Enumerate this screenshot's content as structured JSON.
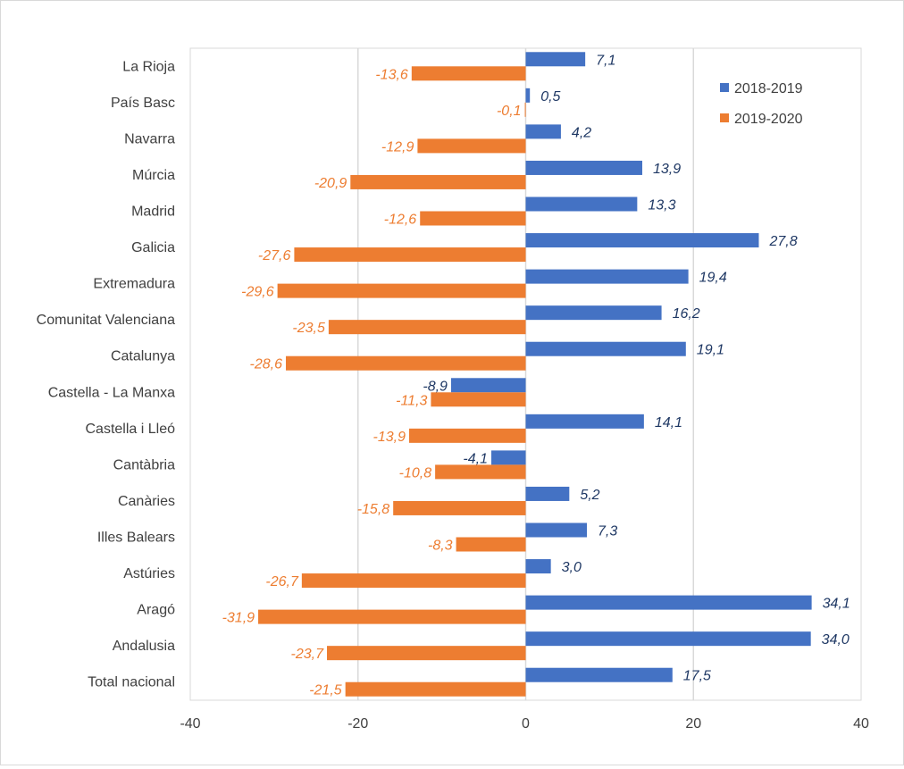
{
  "chart_data": {
    "type": "bar",
    "orientation": "horizontal",
    "title": "",
    "xlabel": "",
    "ylabel": "",
    "xlim": [
      -40,
      40
    ],
    "xticks": [
      -40,
      -20,
      0,
      20,
      40
    ],
    "grid": true,
    "legend_position": "top-right",
    "categories": [
      "La Rioja",
      "País Basc",
      "Navarra",
      "Múrcia",
      "Madrid",
      "Galicia",
      "Extremadura",
      "Comunitat Valenciana",
      "Catalunya",
      "Castella - La Manxa",
      "Castella i Lleó",
      "Cantàbria",
      "Canàries",
      "Illes Balears",
      "Astúries",
      "Aragó",
      "Andalusia",
      "Total nacional"
    ],
    "series": [
      {
        "name": "2018-2019",
        "color": "#4472c4",
        "values": [
          7.1,
          0.5,
          4.2,
          13.9,
          13.3,
          27.8,
          19.4,
          16.2,
          19.1,
          -8.9,
          14.1,
          -4.1,
          5.2,
          7.3,
          3.0,
          34.1,
          34.0,
          17.5
        ],
        "labels": [
          "7,1",
          "0,5",
          "4,2",
          "13,9",
          "13,3",
          "27,8",
          "19,4",
          "16,2",
          "19,1",
          "-8,9",
          "14,1",
          "-4,1",
          "5,2",
          "7,3",
          "3,0",
          "34,1",
          "34,0",
          "17,5"
        ]
      },
      {
        "name": "2019-2020",
        "color": "#ed7d31",
        "values": [
          -13.6,
          -0.1,
          -12.9,
          -20.9,
          -12.6,
          -27.6,
          -29.6,
          -23.5,
          -28.6,
          -11.3,
          -13.9,
          -10.8,
          -15.8,
          -8.3,
          -26.7,
          -31.9,
          -23.7,
          -21.5
        ],
        "labels": [
          "-13,6",
          "-0,1",
          "-12,9",
          "-20,9",
          "-12,6",
          "-27,6",
          "-29,6",
          "-23,5",
          "-28,6",
          "-11,3",
          "-13,9",
          "-10,8",
          "-15,8",
          "-8,3",
          "-26,7",
          "-31,9",
          "-23,7",
          "-21,5"
        ]
      }
    ],
    "value_label_colors": [
      "#1f3864",
      "#ed7d31"
    ],
    "gridline_color": "#d9d9d9",
    "axis_line_color": "#d9d9d9"
  }
}
